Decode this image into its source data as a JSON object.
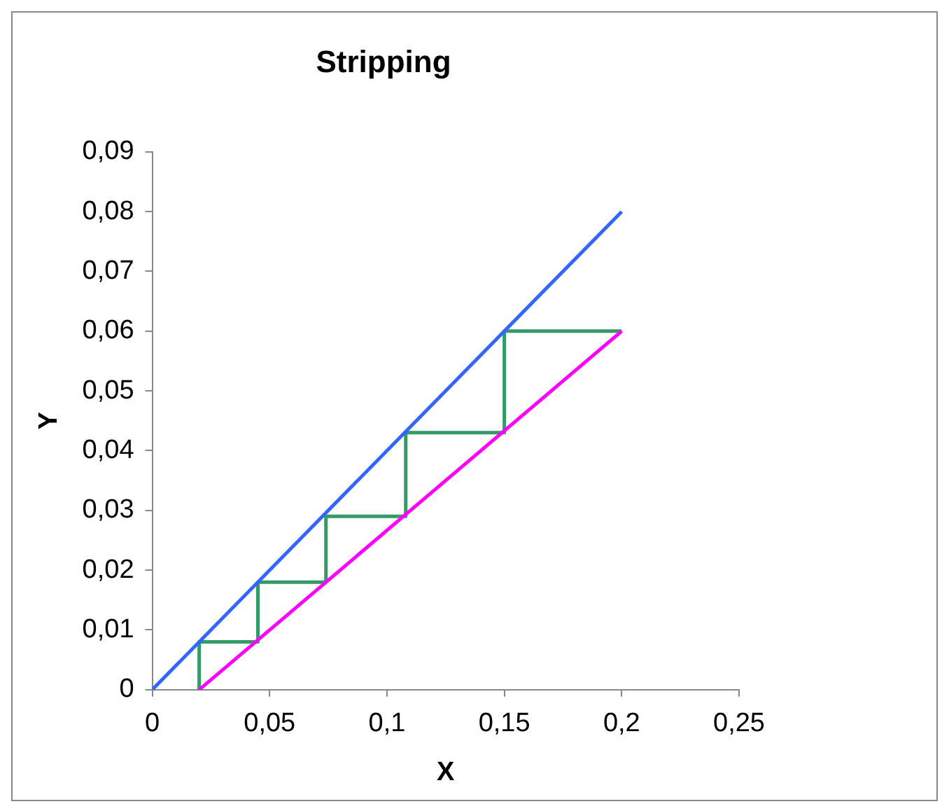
{
  "chart_data": {
    "type": "line",
    "title": "Stripping",
    "xlabel": "X",
    "ylabel": "Y",
    "series": [
      {
        "color": "#3366ff",
        "x": [
          0,
          0.2
        ],
        "values": [
          0,
          0.08
        ]
      },
      {
        "color": "#ff00ff",
        "x": [
          0.02,
          0.2
        ],
        "values": [
          0,
          0.06
        ]
      },
      {
        "color": "#339966",
        "x": [
          0.2,
          0.15,
          0.15,
          0.108,
          0.108,
          0.074,
          0.074,
          0.045,
          0.045,
          0.02,
          0.02
        ],
        "values": [
          0.06,
          0.06,
          0.043,
          0.043,
          0.029,
          0.029,
          0.018,
          0.018,
          0.008,
          0.008,
          0
        ]
      }
    ],
    "xlim": [
      0,
      0.25
    ],
    "xticks": [
      0,
      {
        "value": 0.05,
        "label": "0,05"
      },
      {
        "value": 0.1,
        "label": "0,1"
      },
      {
        "value": 0.15,
        "label": "0,15"
      },
      {
        "value": 0.2,
        "label": "0,2"
      },
      {
        "value": 0.25,
        "label": "0,25"
      }
    ],
    "ylim": [
      0,
      0.09
    ],
    "yticks": [
      0,
      {
        "value": 0.01,
        "label": "0,01"
      },
      {
        "value": 0.02,
        "label": "0,02"
      },
      {
        "value": 0.03,
        "label": "0,03"
      },
      {
        "value": 0.04,
        "label": "0,04"
      },
      {
        "value": 0.05,
        "label": "0,05"
      },
      {
        "value": 0.06,
        "label": "0,06"
      },
      {
        "value": 0.07,
        "label": "0,07"
      },
      {
        "value": 0.08,
        "label": "0,08"
      },
      {
        "value": 0.09,
        "label": "0,09"
      }
    ],
    "legend": false,
    "marker": "none"
  }
}
